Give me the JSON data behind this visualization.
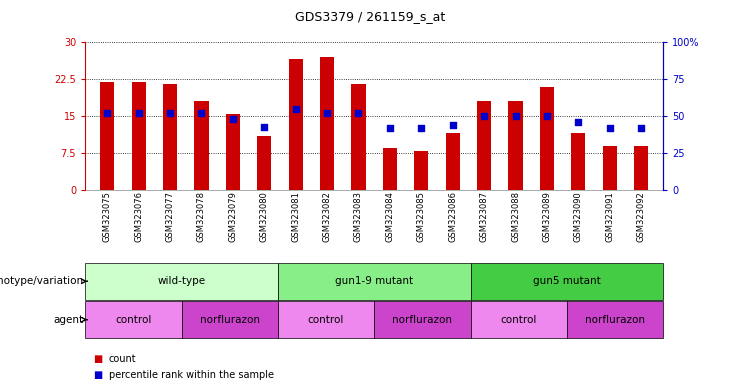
{
  "title": "GDS3379 / 261159_s_at",
  "samples": [
    "GSM323075",
    "GSM323076",
    "GSM323077",
    "GSM323078",
    "GSM323079",
    "GSM323080",
    "GSM323081",
    "GSM323082",
    "GSM323083",
    "GSM323084",
    "GSM323085",
    "GSM323086",
    "GSM323087",
    "GSM323088",
    "GSM323089",
    "GSM323090",
    "GSM323091",
    "GSM323092"
  ],
  "bar_heights": [
    22.0,
    22.0,
    21.5,
    18.0,
    15.5,
    11.0,
    26.5,
    27.0,
    21.5,
    8.5,
    8.0,
    11.5,
    18.0,
    18.0,
    21.0,
    11.5,
    9.0,
    9.0
  ],
  "pct_ranks": [
    52,
    52,
    52,
    52,
    48,
    43,
    55,
    52,
    52,
    42,
    42,
    44,
    50,
    50,
    50,
    46,
    42,
    42
  ],
  "ylim_left": [
    0,
    30
  ],
  "ylim_right": [
    0,
    100
  ],
  "yticks_left": [
    0,
    7.5,
    15,
    22.5,
    30
  ],
  "ytick_labels_left": [
    "0",
    "7.5",
    "15",
    "22.5",
    "30"
  ],
  "yticks_right": [
    0,
    25,
    50,
    75,
    100
  ],
  "ytick_labels_right": [
    "0",
    "25",
    "50",
    "75",
    "100%"
  ],
  "bar_color": "#cc0000",
  "dot_color": "#0000cc",
  "genotype_groups": [
    {
      "label": "wild-type",
      "start": 0,
      "end": 5,
      "color": "#ccffcc"
    },
    {
      "label": "gun1-9 mutant",
      "start": 6,
      "end": 11,
      "color": "#88ee88"
    },
    {
      "label": "gun5 mutant",
      "start": 12,
      "end": 17,
      "color": "#44cc44"
    }
  ],
  "agent_groups": [
    {
      "label": "control",
      "start": 0,
      "end": 2,
      "color": "#ee88ee"
    },
    {
      "label": "norflurazon",
      "start": 3,
      "end": 5,
      "color": "#cc44cc"
    },
    {
      "label": "control",
      "start": 6,
      "end": 8,
      "color": "#ee88ee"
    },
    {
      "label": "norflurazon",
      "start": 9,
      "end": 11,
      "color": "#cc44cc"
    },
    {
      "label": "control",
      "start": 12,
      "end": 14,
      "color": "#ee88ee"
    },
    {
      "label": "norflurazon",
      "start": 15,
      "end": 17,
      "color": "#cc44cc"
    }
  ],
  "legend_count_label": "count",
  "legend_pct_label": "percentile rank within the sample",
  "xlabel_genotype": "genotype/variation",
  "xlabel_agent": "agent"
}
